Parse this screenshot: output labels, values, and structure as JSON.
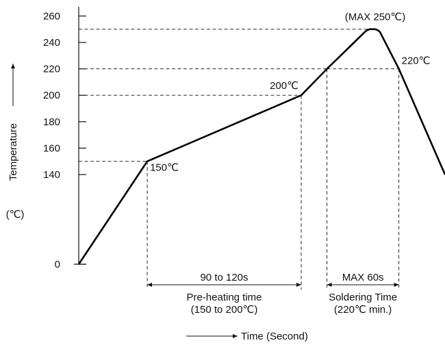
{
  "chart_data": {
    "type": "line",
    "title": "",
    "xlabel": "Time (Second)",
    "ylabel": "Temperature",
    "ylabel_unit": "(℃)",
    "y_ticks": [
      0,
      140,
      160,
      180,
      200,
      220,
      240,
      260
    ],
    "y_scale": "broken (0 to 140 compressed)",
    "grid": false,
    "series": [
      {
        "values": [
          0,
          150,
          200,
          220,
          248,
          250,
          248,
          220,
          140
        ]
      }
    ],
    "point_labels": [
      {
        "point_index": 1,
        "text": "150℃"
      },
      {
        "point_index": 2,
        "text": "200℃"
      },
      {
        "point_index": 5,
        "text": "(MAX 250℃)"
      },
      {
        "point_index": 7,
        "text": "220℃"
      }
    ],
    "spans": [
      {
        "from_level": 150,
        "to_level": 200,
        "label": "90 to 120s",
        "caption_line1": "Pre-heating time",
        "caption_line2": "(150 to 200℃)"
      },
      {
        "from_level": 220,
        "to_level": 220,
        "label": "MAX 60s",
        "caption_line1": "Soldering Time",
        "caption_line2": "(220℃ min.)"
      }
    ]
  }
}
